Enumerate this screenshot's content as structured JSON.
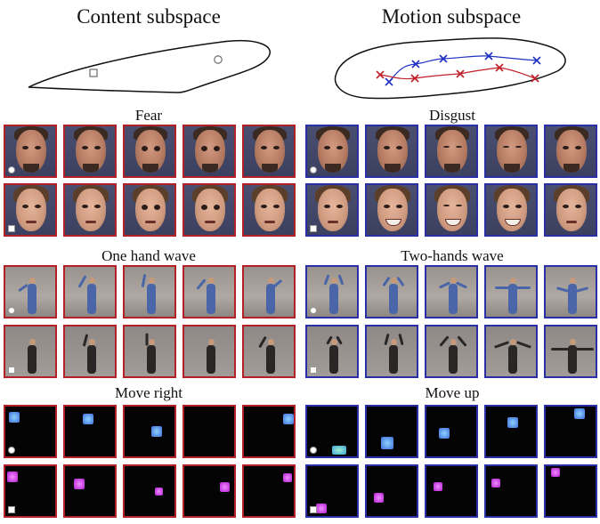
{
  "headers": {
    "left": "Content subspace",
    "right": "Motion subspace"
  },
  "sections": {
    "fear": "Fear",
    "disgust": "Disgust",
    "one_hand_wave": "One hand wave",
    "two_hands_wave": "Two-hands wave",
    "move_right": "Move right",
    "move_up": "Move up"
  },
  "colors": {
    "content_border": "#b32028",
    "motion_border": "#2a2fa6",
    "cross_blue": "#1f32c4",
    "cross_red": "#c0202a"
  }
}
